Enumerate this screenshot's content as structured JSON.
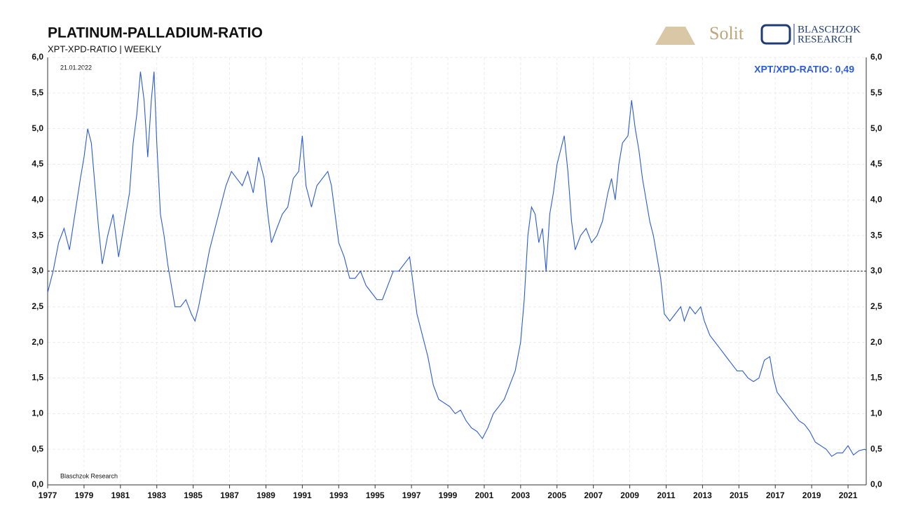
{
  "chart_data": {
    "type": "line",
    "title": "PLATINUM-PALLADIUM-RATIO",
    "subtitle": "XPT-XPD-RATIO | WEEKLY",
    "date": "21.01.2022",
    "source": "Blaschzok  Research",
    "annotation": "XPT/XPD-RATIO: 0,49",
    "brands": [
      "Solit",
      "BLASCHZOK",
      "RESEARCH"
    ],
    "reference_line": 3,
    "grid": true,
    "xlim": [
      1977,
      2022
    ],
    "xticks": [
      1977,
      1979,
      1981,
      1983,
      1985,
      1987,
      1989,
      1991,
      1993,
      1995,
      1997,
      1999,
      2001,
      2003,
      2005,
      2007,
      2009,
      2011,
      2013,
      2015,
      2017,
      2019,
      2021
    ],
    "ylim": [
      0,
      6
    ],
    "yticks": [
      {
        "value": 0,
        "label": "0,0"
      },
      {
        "value": 0.5,
        "label": "0,5"
      },
      {
        "value": 1,
        "label": "1,0"
      },
      {
        "value": 1.5,
        "label": "1,5"
      },
      {
        "value": 2,
        "label": "2,0"
      },
      {
        "value": 2.5,
        "label": "2,5"
      },
      {
        "value": 3,
        "label": "3,0"
      },
      {
        "value": 3.5,
        "label": "3,5"
      },
      {
        "value": 4,
        "label": "4,0"
      },
      {
        "value": 4.5,
        "label": "4,5"
      },
      {
        "value": 5,
        "label": "5,0"
      },
      {
        "value": 5.5,
        "label": "5,5"
      },
      {
        "value": 6,
        "label": "6,0"
      }
    ],
    "x": [
      1977.0,
      1977.3,
      1977.6,
      1977.9,
      1978.2,
      1978.5,
      1978.8,
      1979.0,
      1979.2,
      1979.4,
      1979.6,
      1979.8,
      1980.0,
      1980.3,
      1980.6,
      1980.9,
      1981.1,
      1981.3,
      1981.5,
      1981.7,
      1981.9,
      1982.1,
      1982.3,
      1982.5,
      1982.7,
      1982.85,
      1983.0,
      1983.2,
      1983.4,
      1983.6,
      1983.8,
      1984.0,
      1984.3,
      1984.6,
      1984.9,
      1985.1,
      1985.3,
      1985.6,
      1985.9,
      1986.2,
      1986.5,
      1986.8,
      1987.1,
      1987.4,
      1987.7,
      1988.0,
      1988.3,
      1988.6,
      1988.9,
      1989.1,
      1989.3,
      1989.6,
      1989.9,
      1990.2,
      1990.5,
      1990.8,
      1991.0,
      1991.2,
      1991.5,
      1991.8,
      1992.1,
      1992.4,
      1992.6,
      1992.8,
      1993.0,
      1993.3,
      1993.6,
      1993.9,
      1994.2,
      1994.5,
      1994.8,
      1995.1,
      1995.4,
      1995.7,
      1996.0,
      1996.3,
      1996.6,
      1996.9,
      1997.1,
      1997.3,
      1997.6,
      1997.9,
      1998.2,
      1998.5,
      1998.8,
      1999.1,
      1999.4,
      1999.7,
      2000.0,
      2000.3,
      2000.6,
      2000.9,
      2001.2,
      2001.5,
      2001.8,
      2002.1,
      2002.4,
      2002.7,
      2003.0,
      2003.2,
      2003.4,
      2003.6,
      2003.8,
      2004.0,
      2004.2,
      2004.4,
      2004.6,
      2004.8,
      2005.0,
      2005.2,
      2005.4,
      2005.6,
      2005.8,
      2006.0,
      2006.3,
      2006.6,
      2006.9,
      2007.2,
      2007.5,
      2007.8,
      2008.0,
      2008.2,
      2008.4,
      2008.6,
      2008.9,
      2009.1,
      2009.3,
      2009.5,
      2009.7,
      2009.9,
      2010.1,
      2010.3,
      2010.5,
      2010.7,
      2010.9,
      2011.2,
      2011.5,
      2011.8,
      2012.0,
      2012.3,
      2012.6,
      2012.9,
      2013.1,
      2013.4,
      2013.7,
      2014.0,
      2014.3,
      2014.6,
      2014.9,
      2015.2,
      2015.5,
      2015.8,
      2016.1,
      2016.4,
      2016.7,
      2016.9,
      2017.1,
      2017.4,
      2017.7,
      2018.0,
      2018.3,
      2018.6,
      2018.9,
      2019.2,
      2019.5,
      2019.8,
      2020.1,
      2020.4,
      2020.7,
      2021.0,
      2021.3,
      2021.6,
      2021.9,
      2022.0
    ],
    "series": [
      {
        "name": "XPT/XPD",
        "color": "#2a5bd7",
        "values": [
          2.7,
          3.0,
          3.4,
          3.6,
          3.3,
          3.8,
          4.3,
          4.6,
          5.0,
          4.8,
          4.2,
          3.6,
          3.1,
          3.5,
          3.8,
          3.2,
          3.5,
          3.8,
          4.1,
          4.8,
          5.2,
          5.8,
          5.4,
          4.6,
          5.4,
          5.8,
          4.8,
          3.8,
          3.5,
          3.1,
          2.8,
          2.5,
          2.5,
          2.6,
          2.4,
          2.3,
          2.5,
          2.9,
          3.3,
          3.6,
          3.9,
          4.2,
          4.4,
          4.3,
          4.2,
          4.4,
          4.1,
          4.6,
          4.3,
          3.8,
          3.4,
          3.6,
          3.8,
          3.9,
          4.3,
          4.4,
          4.9,
          4.2,
          3.9,
          4.2,
          4.3,
          4.4,
          4.2,
          3.8,
          3.4,
          3.2,
          2.9,
          2.9,
          3.0,
          2.8,
          2.7,
          2.6,
          2.6,
          2.8,
          3.0,
          3.0,
          3.1,
          3.2,
          2.8,
          2.4,
          2.1,
          1.8,
          1.4,
          1.2,
          1.15,
          1.1,
          1.0,
          1.05,
          0.9,
          0.8,
          0.75,
          0.65,
          0.8,
          1.0,
          1.1,
          1.2,
          1.4,
          1.6,
          2.0,
          2.6,
          3.5,
          3.9,
          3.8,
          3.4,
          3.6,
          3.0,
          3.8,
          4.1,
          4.5,
          4.7,
          4.9,
          4.4,
          3.7,
          3.3,
          3.5,
          3.6,
          3.4,
          3.5,
          3.7,
          4.1,
          4.3,
          4.0,
          4.5,
          4.8,
          4.9,
          5.4,
          5.0,
          4.7,
          4.3,
          4.0,
          3.7,
          3.5,
          3.2,
          2.9,
          2.4,
          2.3,
          2.4,
          2.5,
          2.3,
          2.5,
          2.4,
          2.5,
          2.3,
          2.1,
          2.0,
          1.9,
          1.8,
          1.7,
          1.6,
          1.6,
          1.5,
          1.45,
          1.5,
          1.75,
          1.8,
          1.5,
          1.3,
          1.2,
          1.1,
          1.0,
          0.9,
          0.85,
          0.75,
          0.6,
          0.55,
          0.5,
          0.4,
          0.45,
          0.45,
          0.55,
          0.42,
          0.48,
          0.5,
          0.49
        ]
      }
    ]
  }
}
